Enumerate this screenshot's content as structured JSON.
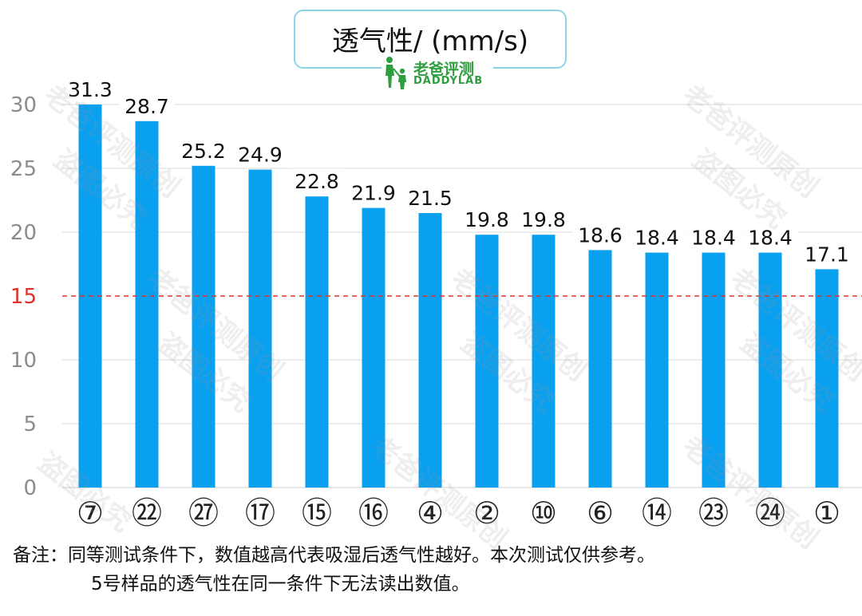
{
  "chart_data": {
    "type": "bar",
    "title": "透气性/ (mm/s)",
    "categories": [
      "⑦",
      "㉒",
      "㉗",
      "⑰",
      "⑮",
      "⑯",
      "④",
      "②",
      "⑩",
      "⑥",
      "⑭",
      "㉓",
      "㉔",
      "①"
    ],
    "values": [
      31.3,
      28.7,
      25.2,
      24.9,
      22.8,
      21.9,
      21.5,
      19.8,
      19.8,
      18.6,
      18.4,
      18.4,
      18.4,
      17.1
    ],
    "value_labels": [
      "31.3",
      "28.7",
      "25.2",
      "24.9",
      "22.8",
      "21.9",
      "21.5",
      "19.8",
      "19.8",
      "18.6",
      "18.4",
      "18.4",
      "18.4",
      "17.1"
    ],
    "ylim": [
      0,
      30
    ],
    "yticks": [
      "0",
      "5",
      "10",
      "15",
      "20",
      "25",
      "30"
    ],
    "reference_line": {
      "value": 15,
      "label": "15",
      "color": "#e0302a"
    },
    "bar_color": "#0aa0f0",
    "grid": true
  },
  "brand": {
    "cn": "老爸评测",
    "en": "DADDYLAB"
  },
  "watermarks": [
    "老爸评测原创",
    "盗图必究"
  ],
  "note": {
    "line1": "备注：同等测试条件下，数值越高代表吸湿后透气性越好。本次测试仅供参考。",
    "line2": "5号样品的透气性在同一条件下无法读出数值。"
  }
}
